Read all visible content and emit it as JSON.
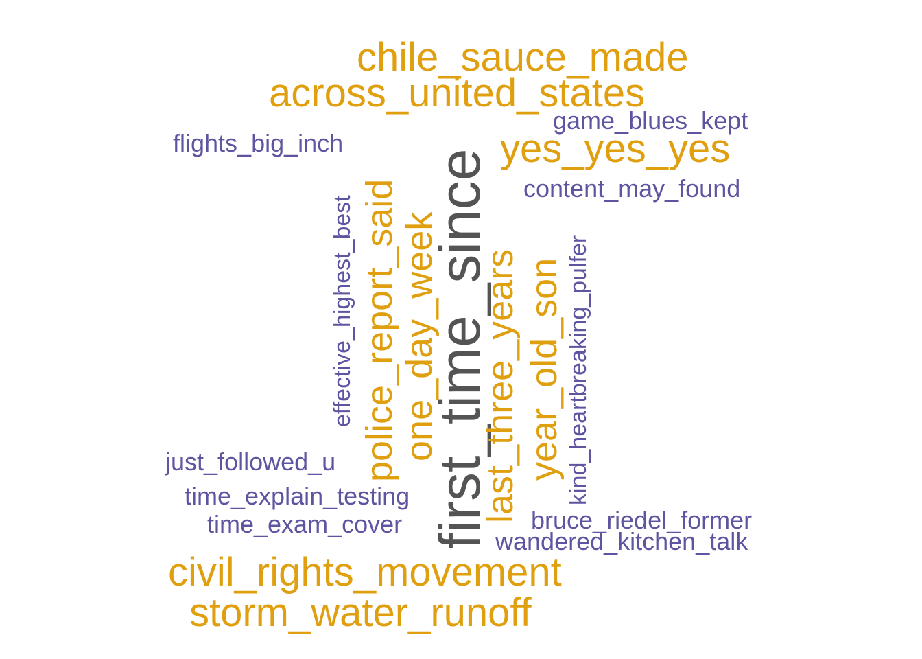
{
  "palette": {
    "top": "#545454",
    "mid": "#E09F0E",
    "low": "#5E55A1"
  },
  "words": {
    "first_time_since": "first_time_since",
    "chile_sauce_made": "chile_sauce_made",
    "across_united_states": "across_united_states",
    "yes_yes_yes": "yes_yes_yes",
    "civil_rights_movement": "civil_rights_movement",
    "storm_water_runoff": "storm_water_runoff",
    "police_report_said": "police_report_said",
    "one_day_week": "one_day_week",
    "last_three_years": "last_three_years",
    "year_old_son": "year_old_son",
    "game_blues_kept": "game_blues_kept",
    "flights_big_inch": "flights_big_inch",
    "content_may_found": "content_may_found",
    "effective_highest_best": "effective_highest_best",
    "kind_heartbreaking_pulfer": "kind_heartbreaking_pulfer",
    "just_followed_u": "just_followed_u",
    "time_explain_testing": "time_explain_testing",
    "time_exam_cover": "time_exam_cover",
    "bruce_riedel_former": "bruce_riedel_former",
    "wandered_kitchen_talk": "wandered_kitchen_talk"
  }
}
